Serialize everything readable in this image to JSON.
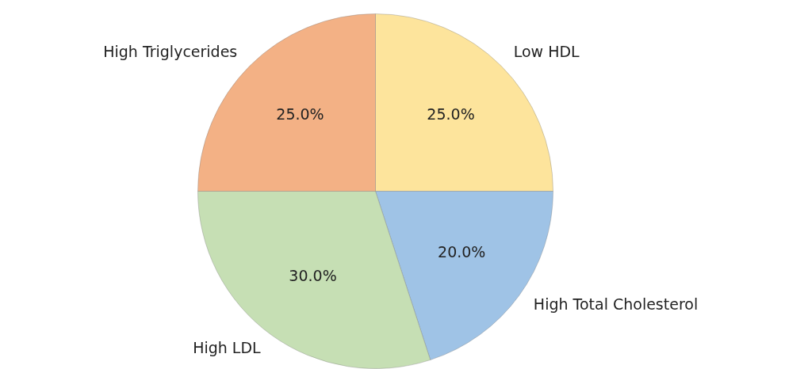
{
  "chart_data": {
    "type": "pie",
    "categories": [
      "Low HDL",
      "High Total Cholesterol",
      "High LDL",
      "High Triglycerides"
    ],
    "values": [
      25,
      20,
      30,
      25
    ],
    "colors": [
      "#fde49c",
      "#9fc3e6",
      "#c6dfb4",
      "#f3b185"
    ],
    "value_labels": [
      "25.0%",
      "20.0%",
      "30.0%",
      "25.0%"
    ],
    "legend": false
  }
}
